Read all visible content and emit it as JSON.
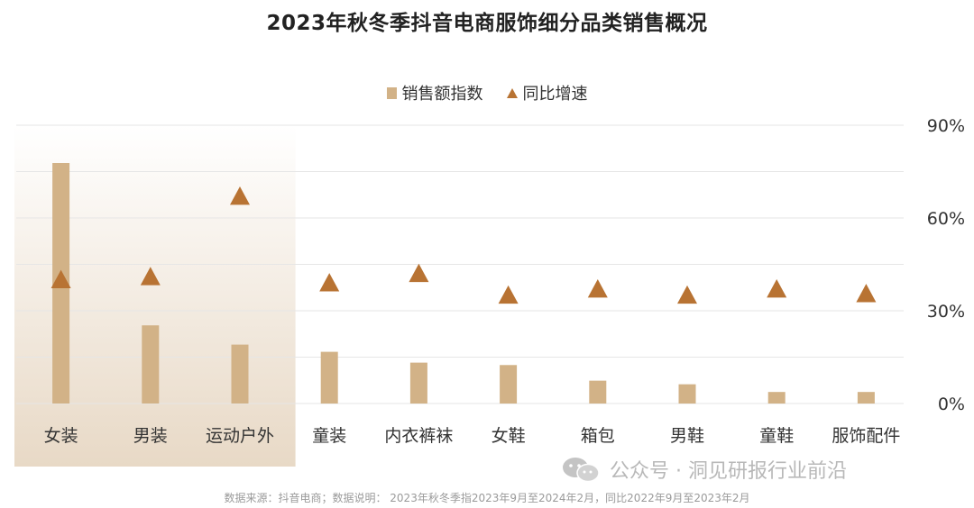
{
  "title": "2023年秋冬季抖音电商服饰细分品类销售概况",
  "colors": {
    "bar": "#d2b287",
    "triangle": "#b87333",
    "highlight_top": "#ffffff",
    "highlight_bottom": "#e8d9c6",
    "grid": "#e6e6e6",
    "axis_text": "#333333"
  },
  "watermark": {
    "icon": "wechat-icon",
    "text": "公众号 · 洞见研报行业前沿"
  },
  "footnote": "数据来源：抖音电商；数据说明： 2023年秋冬季指2023年9月至2024年2月，同比2022年9月至2023年2月",
  "chart_data": {
    "type": "bar",
    "title": "2023年秋冬季抖音电商服饰细分品类销售概况",
    "categories": [
      "女装",
      "男装",
      "运动户外",
      "童装",
      "内衣裤袜",
      "女鞋",
      "箱包",
      "男鞋",
      "童鞋",
      "服饰配件"
    ],
    "series": [
      {
        "name": "销售额指数",
        "type": "bar",
        "axis": "hidden-left",
        "values": [
          100,
          32.5,
          24.5,
          21.5,
          17.0,
          16.0,
          9.5,
          8.0,
          4.8,
          4.8
        ],
        "ylim": [
          0,
          100
        ]
      },
      {
        "name": "同比增速",
        "type": "triangle-marker",
        "axis": "right",
        "unit": "%",
        "values": [
          40,
          41,
          67,
          39,
          42,
          35,
          37,
          35,
          37,
          35.5
        ],
        "ylim": [
          0,
          90
        ]
      }
    ],
    "right_axis": {
      "ticks": [
        0,
        30,
        60,
        90
      ],
      "tick_labels": [
        "0%",
        "30%",
        "60%",
        "90%"
      ]
    },
    "highlighted_categories": [
      "女装",
      "男装",
      "运动户外"
    ],
    "grid": true,
    "legend": "top-center"
  }
}
